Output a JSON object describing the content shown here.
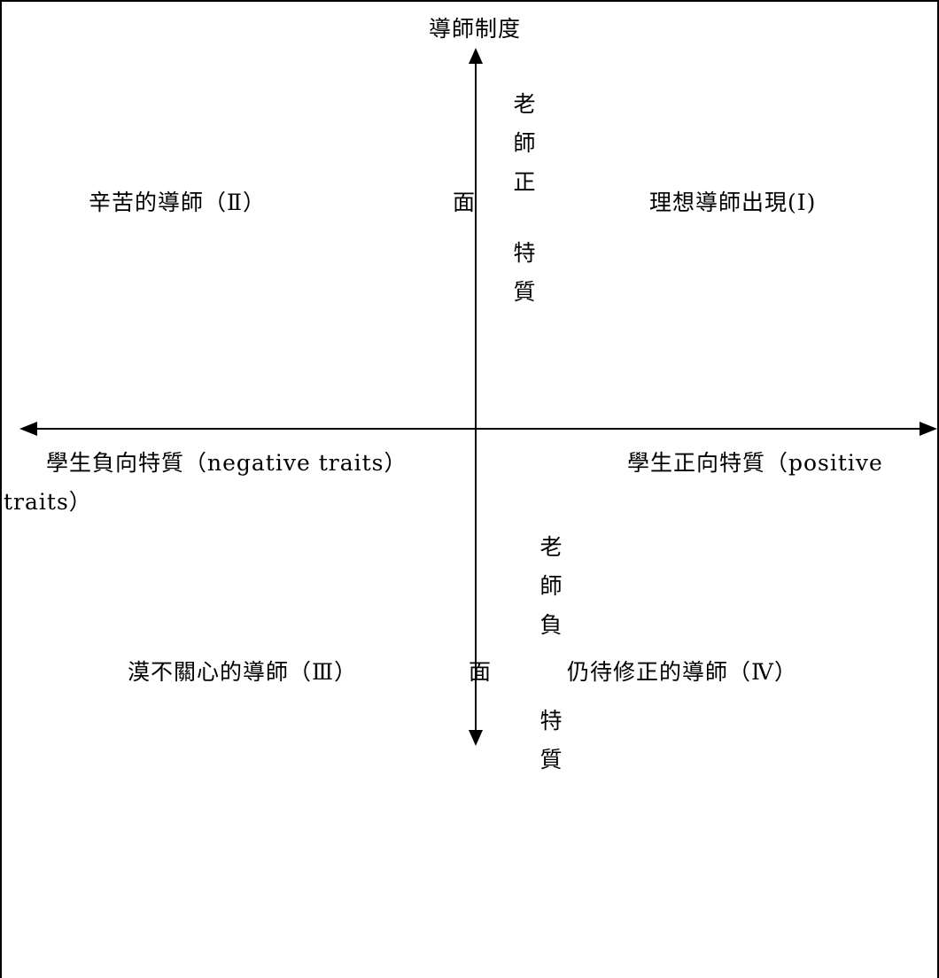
{
  "diagram": {
    "y_axis_top_label": "導師制度",
    "x_axis_left_label": "學生負向特質（negative traits）",
    "x_axis_right_label_line1": "學生正向特質（positive",
    "x_axis_right_label_line2": "traits）",
    "upper_axis_label_chars": [
      "老",
      "師",
      "正"
    ],
    "upper_axis_mid_char": "面",
    "upper_axis_tail_chars": [
      "特",
      "質"
    ],
    "lower_axis_label_chars": [
      "老",
      "師",
      "負"
    ],
    "lower_axis_mid_char": "面",
    "lower_axis_tail_chars": [
      "特",
      "質"
    ],
    "quadrants": {
      "q1": "理想導師出現(Ⅰ)",
      "q2": "辛苦的導師（Ⅱ）",
      "q3": "漠不關心的導師（Ⅲ）",
      "q4": "仍待修正的導師（Ⅳ）"
    },
    "colors": {
      "line": "#000000",
      "background": "#ffffff"
    }
  }
}
